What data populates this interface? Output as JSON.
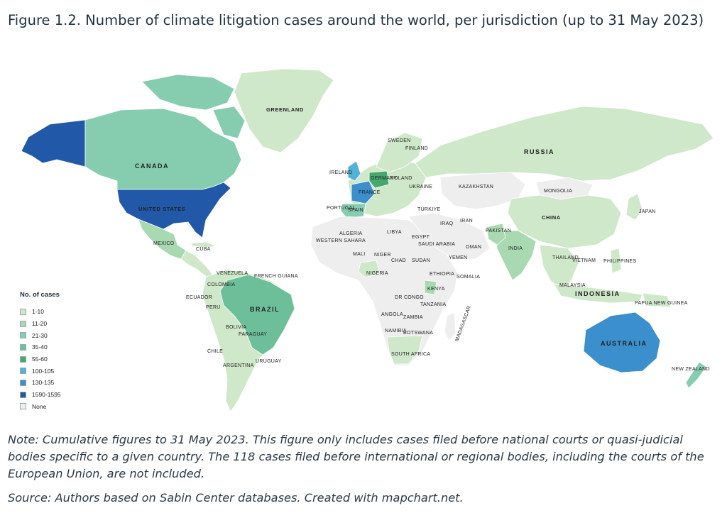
{
  "figure": {
    "title": "Figure 1.2. Number of climate litigation cases around the world, per jurisdiction (up to 31 May 2023)",
    "note": "Note: Cumulative figures to 31 May 2023. This figure only includes cases filed before national courts or quasi-judicial bodies specific to a given country. The 118 cases filed before international or regional bodies, including the courts of the European Union, are not included.",
    "source": "Source: Authors based on Sabin Center databases. Created with mapchart.net."
  },
  "legend": {
    "title": "No. of cases",
    "items": [
      {
        "label": "1-10",
        "color": "#cfe8c9"
      },
      {
        "label": "11-20",
        "color": "#a8d9b0"
      },
      {
        "label": "21-30",
        "color": "#86cdb0"
      },
      {
        "label": "35-40",
        "color": "#6dbf9a"
      },
      {
        "label": "55-60",
        "color": "#45a86e"
      },
      {
        "label": "100-105",
        "color": "#52b1d9"
      },
      {
        "label": "130-135",
        "color": "#3b8fcc"
      },
      {
        "label": "1590-1595",
        "color": "#2159a8"
      },
      {
        "label": "None",
        "color": "#eeeeee"
      }
    ]
  },
  "map_labels": {
    "greenland": "GREENLAND",
    "canada": "CANADA",
    "united_states": "UNITED STATES",
    "mexico": "MEXICO",
    "cuba": "CUBA",
    "brazil": "BRAZIL",
    "russia": "RUSSIA",
    "china": "CHINA",
    "mongolia": "MONGOLIA",
    "kazakhstan": "KAZAKHSTAN",
    "india": "INDIA",
    "pakistan": "PAKISTAN",
    "indonesia": "INDONESIA",
    "australia": "AUSTRALIA",
    "new_zealand": "NEW ZEALAND",
    "japan": "JAPAN",
    "south_africa": "SOUTH AFRICA",
    "algeria": "ALGERIA",
    "libya": "LIBYA",
    "egypt": "EGYPT",
    "mali": "MALI",
    "niger": "NIGER",
    "chad": "CHAD",
    "sudan": "SUDAN",
    "nigeria": "NIGERIA",
    "ethiopia": "ETHIOPIA",
    "kenya": "KENYA",
    "somalia": "SOMALIA",
    "dr_congo": "DR CONGO",
    "angola": "ANGOLA",
    "zambia": "ZAMBIA",
    "tanzania": "TANZANIA",
    "namibia": "NAMIBIA",
    "botswana": "BOTSWANA",
    "madagascar": "MADAGASCAR",
    "saudi_arabia": "SAUDI ARABIA",
    "iran": "IRAN",
    "iraq": "IRAQ",
    "turkiye": "TÜRKIYE",
    "ukraine": "UKRAINE",
    "poland": "POLAND",
    "germany": "GERMANY",
    "france": "FRANCE",
    "spain": "SPAIN",
    "portugal": "PORTUGAL",
    "ireland": "IRELAND",
    "sweden": "SWEDEN",
    "finland": "FINLAND",
    "peru": "PERU",
    "bolivia": "BOLIVIA",
    "chile": "CHILE",
    "argentina": "ARGENTINA",
    "uruguay": "URUGUAY",
    "paraguay": "PARAGUAY",
    "colombia": "COLOMBIA",
    "venezuela": "VENEZUELA",
    "ecuador": "ECUADOR",
    "french_guiana": "FRENCH GUIANA",
    "philippines": "PHILIPPINES",
    "malaysia": "MALAYSIA",
    "thailand": "THAILAND",
    "vietnam": "VIETNAM",
    "papua_new_guinea": "PAPUA NEW GUINEA",
    "western_sahara": "WESTERN SAHARA",
    "yemen": "YEMEN",
    "oman": "OMAN"
  }
}
